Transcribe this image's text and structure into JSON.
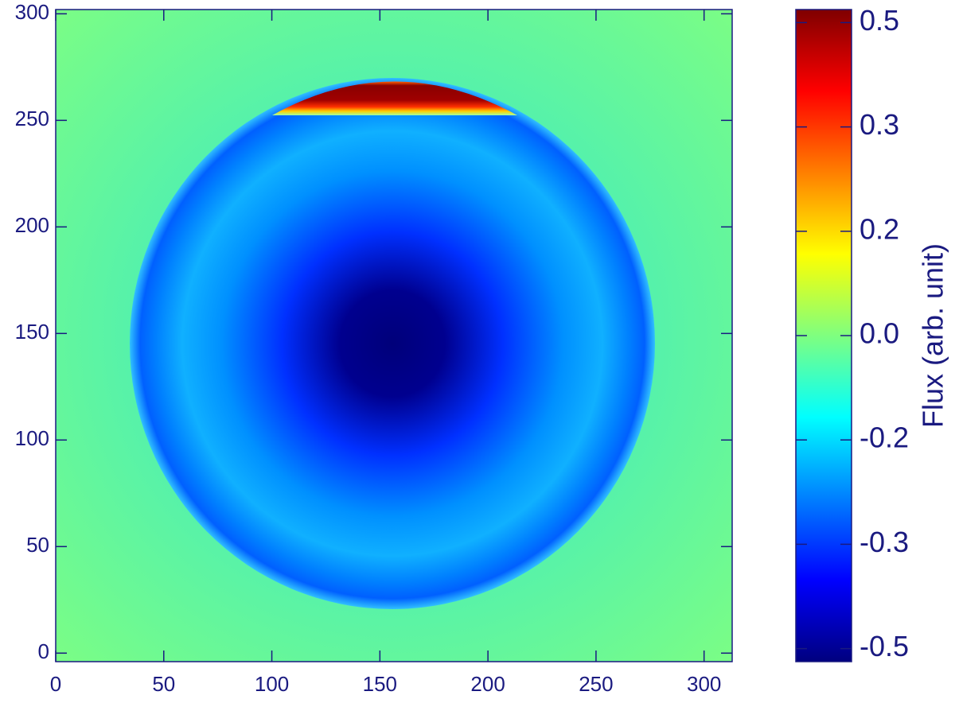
{
  "chart_data": {
    "type": "heatmap",
    "xlim": [
      0,
      313
    ],
    "xticks": [
      0,
      50,
      100,
      150,
      200,
      250,
      300
    ],
    "ylim": [
      -4,
      302
    ],
    "yticks": [
      0,
      50,
      100,
      150,
      200,
      250,
      300
    ],
    "colorbar": {
      "label": "Flux (arb. unit)",
      "clim": [
        -0.5,
        0.5
      ],
      "ticks": [
        {
          "value": -0.48,
          "label": "-0.5"
        },
        {
          "value": -0.32,
          "label": "-0.3"
        },
        {
          "value": -0.16,
          "label": "-0.2"
        },
        {
          "value": 0,
          "label": "0.0"
        },
        {
          "value": 0.16,
          "label": "0.2"
        },
        {
          "value": 0.32,
          "label": "0.3"
        },
        {
          "value": 0.48,
          "label": "0.5"
        }
      ],
      "colormap": [
        "#00007f",
        "#0000ff",
        "#007fff",
        "#00ffff",
        "#7fff7f",
        "#ffff00",
        "#ff7f00",
        "#ff0000",
        "#7f0000"
      ]
    },
    "axis_color": "#1a1a80"
  }
}
